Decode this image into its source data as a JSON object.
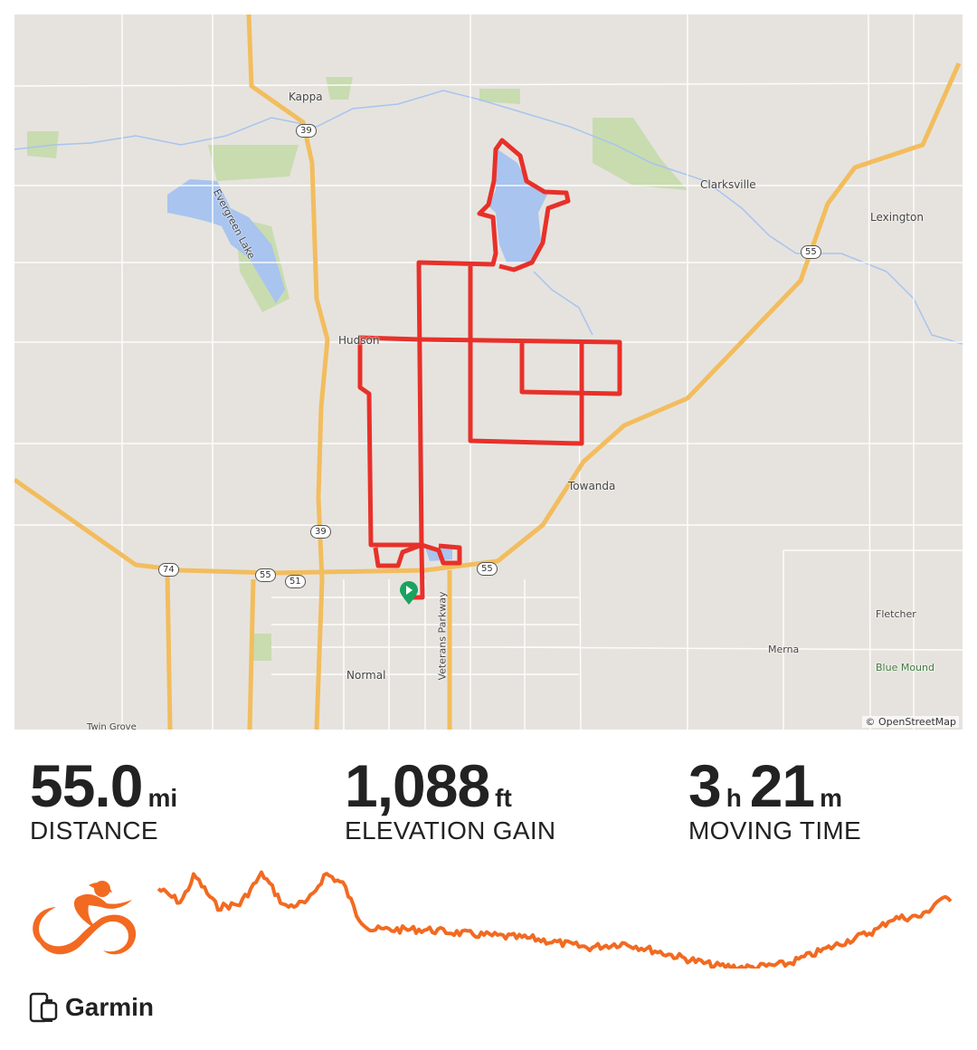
{
  "map": {
    "labels": {
      "kappa": "Kappa",
      "evergreen_lake": "Evergreen Lake",
      "clarksville": "Clarksville",
      "lexington": "Lexington",
      "hudson": "Hudson",
      "towanda": "Towanda",
      "normal": "Normal",
      "veterans_parkway": "Veterans Parkway",
      "fletcher": "Fletcher",
      "merna": "Merna",
      "blue_mound": "Blue Mound",
      "twin_grove": "Twin Grove"
    },
    "shields": [
      "39",
      "55",
      "39",
      "74",
      "55",
      "51",
      "55"
    ],
    "attribution": "© OpenStreetMap",
    "route_color": "#e8302a",
    "start_marker_color": "#1aa35f"
  },
  "stats": {
    "distance": {
      "value": "55.0",
      "unit": "mi",
      "label": "DISTANCE"
    },
    "elevation": {
      "value": "1,088",
      "unit": "ft",
      "label": "ELEVATION GAIN"
    },
    "time": {
      "hours": "3",
      "hours_unit": "h",
      "minutes": "21",
      "minutes_unit": "m",
      "label": "MOVING TIME"
    }
  },
  "activity": {
    "type_icon": "cycling-icon",
    "accent_color": "#f26a21"
  },
  "device": {
    "icon": "phone-watch-icon",
    "name": "Garmin"
  }
}
